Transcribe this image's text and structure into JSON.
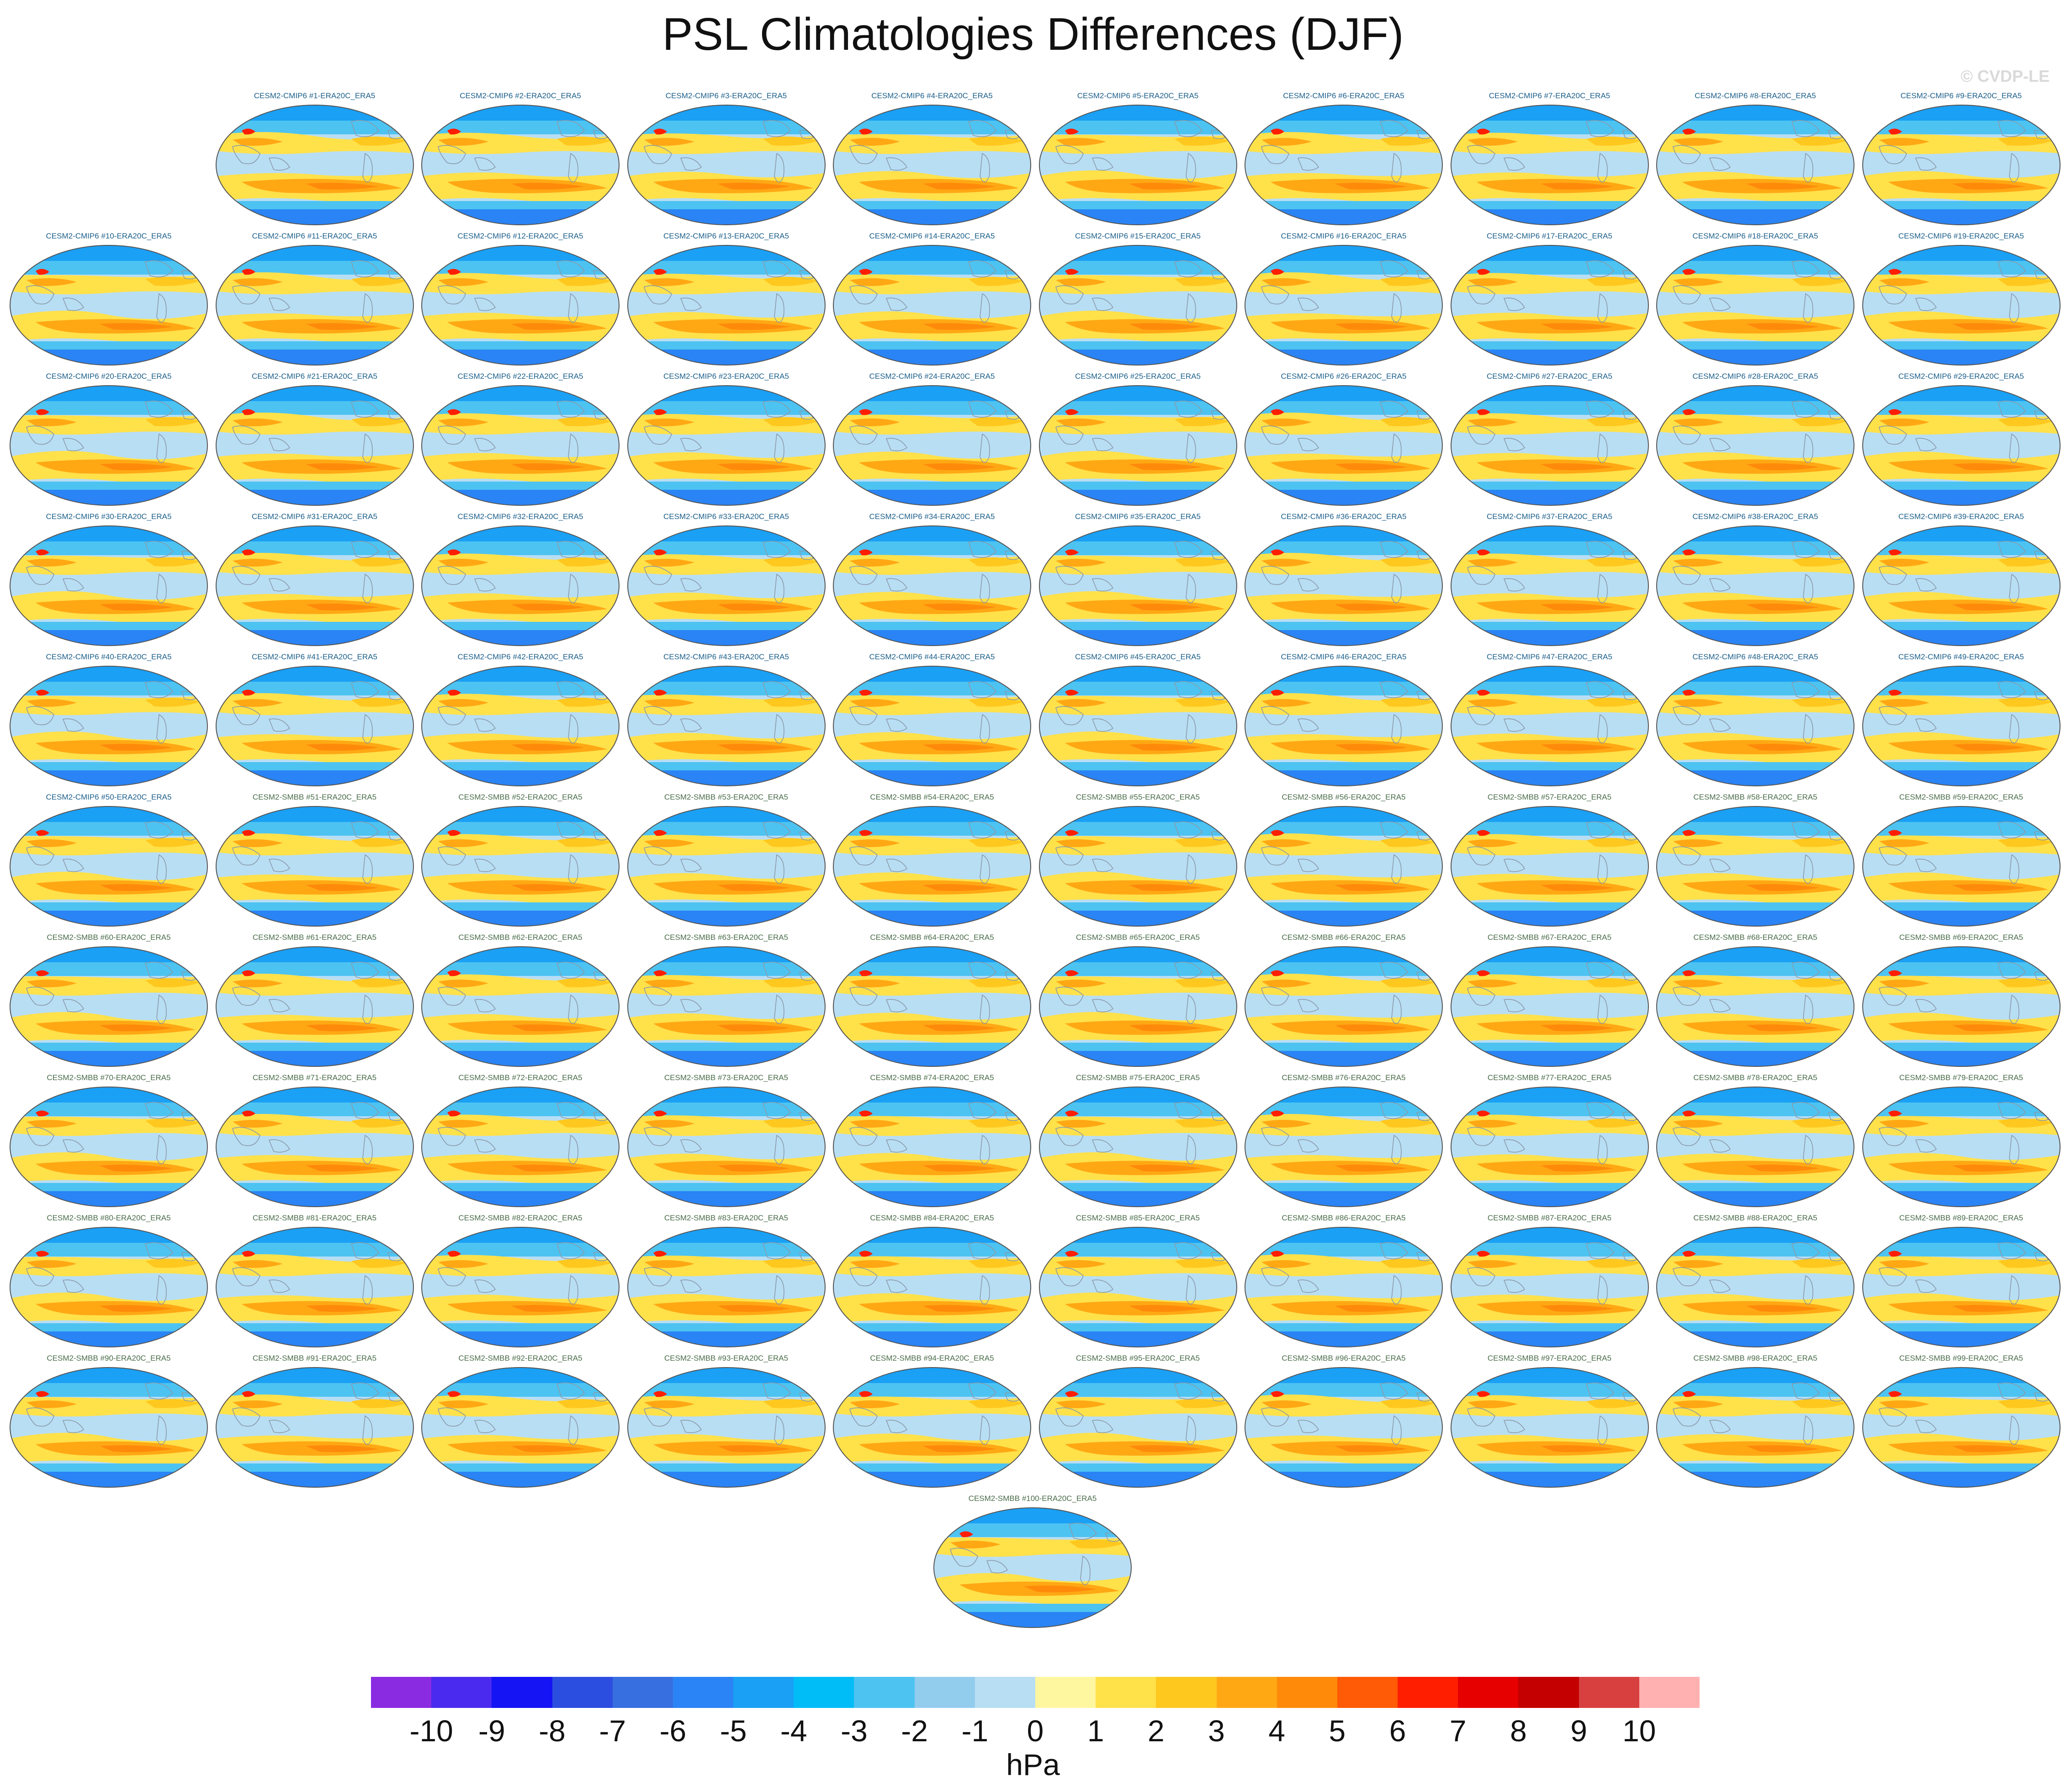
{
  "title": "PSL Climatologies Differences (DJF)",
  "copyright": "© CVDP-LE",
  "panel_labels": [
    "CESM2-CMIP6 #1-ERA20C_ERA5",
    "CESM2-CMIP6 #2-ERA20C_ERA5",
    "CESM2-CMIP6 #3-ERA20C_ERA5",
    "CESM2-CMIP6 #4-ERA20C_ERA5",
    "CESM2-CMIP6 #5-ERA20C_ERA5",
    "CESM2-CMIP6 #6-ERA20C_ERA5",
    "CESM2-CMIP6 #7-ERA20C_ERA5",
    "CESM2-CMIP6 #8-ERA20C_ERA5",
    "CESM2-CMIP6 #9-ERA20C_ERA5",
    "CESM2-CMIP6 #10-ERA20C_ERA5",
    "CESM2-CMIP6 #11-ERA20C_ERA5",
    "CESM2-CMIP6 #12-ERA20C_ERA5",
    "CESM2-CMIP6 #13-ERA20C_ERA5",
    "CESM2-CMIP6 #14-ERA20C_ERA5",
    "CESM2-CMIP6 #15-ERA20C_ERA5",
    "CESM2-CMIP6 #16-ERA20C_ERA5",
    "CESM2-CMIP6 #17-ERA20C_ERA5",
    "CESM2-CMIP6 #18-ERA20C_ERA5",
    "CESM2-CMIP6 #19-ERA20C_ERA5",
    "CESM2-CMIP6 #20-ERA20C_ERA5",
    "CESM2-CMIP6 #21-ERA20C_ERA5",
    "CESM2-CMIP6 #22-ERA20C_ERA5",
    "CESM2-CMIP6 #23-ERA20C_ERA5",
    "CESM2-CMIP6 #24-ERA20C_ERA5",
    "CESM2-CMIP6 #25-ERA20C_ERA5",
    "CESM2-CMIP6 #26-ERA20C_ERA5",
    "CESM2-CMIP6 #27-ERA20C_ERA5",
    "CESM2-CMIP6 #28-ERA20C_ERA5",
    "CESM2-CMIP6 #29-ERA20C_ERA5",
    "CESM2-CMIP6 #30-ERA20C_ERA5",
    "CESM2-CMIP6 #31-ERA20C_ERA5",
    "CESM2-CMIP6 #32-ERA20C_ERA5",
    "CESM2-CMIP6 #33-ERA20C_ERA5",
    "CESM2-CMIP6 #34-ERA20C_ERA5",
    "CESM2-CMIP6 #35-ERA20C_ERA5",
    "CESM2-CMIP6 #36-ERA20C_ERA5",
    "CESM2-CMIP6 #37-ERA20C_ERA5",
    "CESM2-CMIP6 #38-ERA20C_ERA5",
    "CESM2-CMIP6 #39-ERA20C_ERA5",
    "CESM2-CMIP6 #40-ERA20C_ERA5",
    "CESM2-CMIP6 #41-ERA20C_ERA5",
    "CESM2-CMIP6 #42-ERA20C_ERA5",
    "CESM2-CMIP6 #43-ERA20C_ERA5",
    "CESM2-CMIP6 #44-ERA20C_ERA5",
    "CESM2-CMIP6 #45-ERA20C_ERA5",
    "CESM2-CMIP6 #46-ERA20C_ERA5",
    "CESM2-CMIP6 #47-ERA20C_ERA5",
    "CESM2-CMIP6 #48-ERA20C_ERA5",
    "CESM2-CMIP6 #49-ERA20C_ERA5",
    "CESM2-CMIP6 #50-ERA20C_ERA5",
    "CESM2-SMBB #51-ERA20C_ERA5",
    "CESM2-SMBB #52-ERA20C_ERA5",
    "CESM2-SMBB #53-ERA20C_ERA5",
    "CESM2-SMBB #54-ERA20C_ERA5",
    "CESM2-SMBB #55-ERA20C_ERA5",
    "CESM2-SMBB #56-ERA20C_ERA5",
    "CESM2-SMBB #57-ERA20C_ERA5",
    "CESM2-SMBB #58-ERA20C_ERA5",
    "CESM2-SMBB #59-ERA20C_ERA5",
    "CESM2-SMBB #60-ERA20C_ERA5",
    "CESM2-SMBB #61-ERA20C_ERA5",
    "CESM2-SMBB #62-ERA20C_ERA5",
    "CESM2-SMBB #63-ERA20C_ERA5",
    "CESM2-SMBB #64-ERA20C_ERA5",
    "CESM2-SMBB #65-ERA20C_ERA5",
    "CESM2-SMBB #66-ERA20C_ERA5",
    "CESM2-SMBB #67-ERA20C_ERA5",
    "CESM2-SMBB #68-ERA20C_ERA5",
    "CESM2-SMBB #69-ERA20C_ERA5",
    "CESM2-SMBB #70-ERA20C_ERA5",
    "CESM2-SMBB #71-ERA20C_ERA5",
    "CESM2-SMBB #72-ERA20C_ERA5",
    "CESM2-SMBB #73-ERA20C_ERA5",
    "CESM2-SMBB #74-ERA20C_ERA5",
    "CESM2-SMBB #75-ERA20C_ERA5",
    "CESM2-SMBB #76-ERA20C_ERA5",
    "CESM2-SMBB #77-ERA20C_ERA5",
    "CESM2-SMBB #78-ERA20C_ERA5",
    "CESM2-SMBB #79-ERA20C_ERA5",
    "CESM2-SMBB #80-ERA20C_ERA5",
    "CESM2-SMBB #81-ERA20C_ERA5",
    "CESM2-SMBB #82-ERA20C_ERA5",
    "CESM2-SMBB #83-ERA20C_ERA5",
    "CESM2-SMBB #84-ERA20C_ERA5",
    "CESM2-SMBB #85-ERA20C_ERA5",
    "CESM2-SMBB #86-ERA20C_ERA5",
    "CESM2-SMBB #87-ERA20C_ERA5",
    "CESM2-SMBB #88-ERA20C_ERA5",
    "CESM2-SMBB #89-ERA20C_ERA5",
    "CESM2-SMBB #90-ERA20C_ERA5",
    "CESM2-SMBB #91-ERA20C_ERA5",
    "CESM2-SMBB #92-ERA20C_ERA5",
    "CESM2-SMBB #93-ERA20C_ERA5",
    "CESM2-SMBB #94-ERA20C_ERA5",
    "CESM2-SMBB #95-ERA20C_ERA5",
    "CESM2-SMBB #96-ERA20C_ERA5",
    "CESM2-SMBB #97-ERA20C_ERA5",
    "CESM2-SMBB #98-ERA20C_ERA5",
    "CESM2-SMBB #99-ERA20C_ERA5",
    "CESM2-SMBB #100-ERA20C_ERA5"
  ],
  "colorbar": {
    "colors": [
      "#8a2be2",
      "#4b2af0",
      "#1414f5",
      "#2c4ee0",
      "#386fe0",
      "#2a84f5",
      "#1aa0f5",
      "#00bcf7",
      "#4dc3f2",
      "#93cdee",
      "#b8def4",
      "#fff6a0",
      "#ffe14a",
      "#ffc81e",
      "#ffa814",
      "#ff8a0a",
      "#ff5a05",
      "#ff1e00",
      "#e60000",
      "#c40000",
      "#d84040",
      "#ffb0b0"
    ],
    "tick_labels": [
      "-10",
      "-9",
      "-8",
      "-7",
      "-6",
      "-5",
      "-4",
      "-3",
      "-2",
      "-1",
      "0",
      "1",
      "2",
      "3",
      "4",
      "5",
      "6",
      "7",
      "8",
      "9",
      "10"
    ],
    "units": "hPa"
  }
}
